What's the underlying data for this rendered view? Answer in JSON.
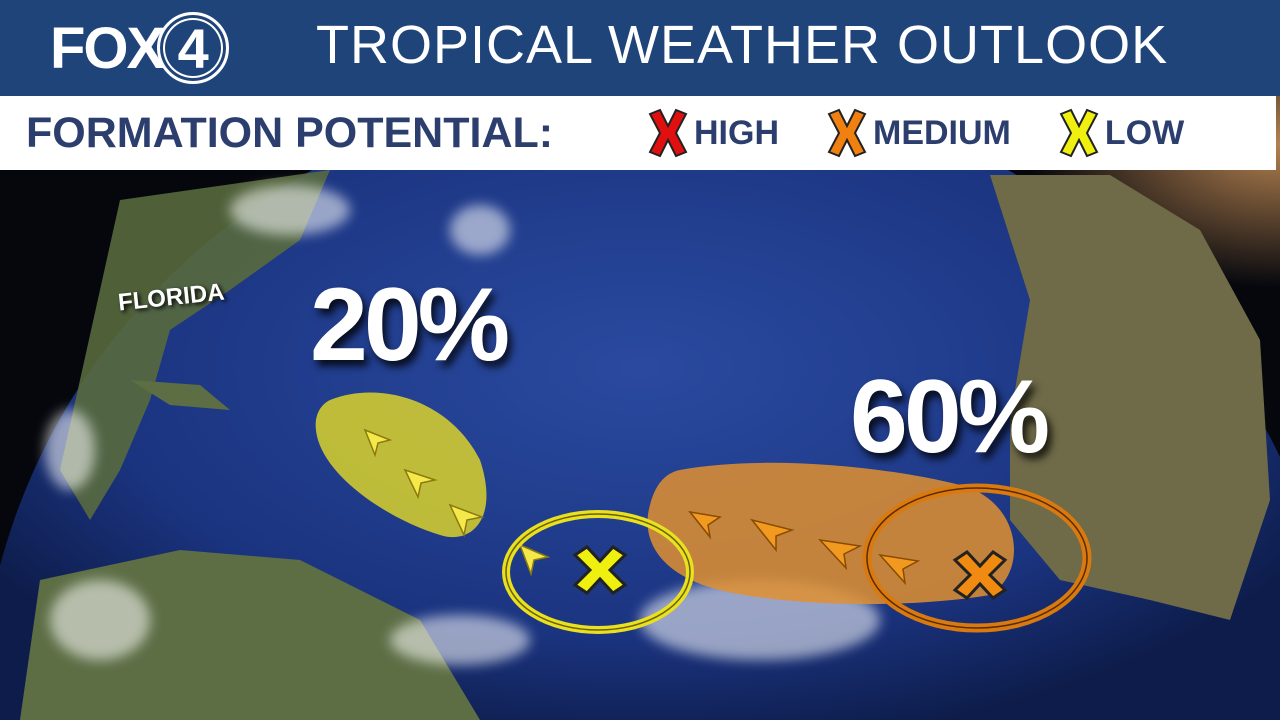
{
  "header": {
    "logo": "FOX4",
    "logo_text": "FOX",
    "logo_number": "4",
    "title": "TROPICAL WEATHER OUTLOOK"
  },
  "legend": {
    "title": "FORMATION POTENTIAL:",
    "items": [
      {
        "label": "HIGH",
        "color": "#e01010"
      },
      {
        "label": "MEDIUM",
        "color": "#f08010"
      },
      {
        "label": "LOW",
        "color": "#f0f010"
      }
    ]
  },
  "map": {
    "place_labels": [
      "FLORIDA"
    ],
    "systems": [
      {
        "potential": "LOW",
        "percent": "20%",
        "color": "#e8e020",
        "area_color": "#d9d22a"
      },
      {
        "potential": "MEDIUM",
        "percent": "60%",
        "color": "#f08a10",
        "area_color": "#e09030"
      }
    ],
    "colors": {
      "ocean": "#1e3a86",
      "land": "#5d6e45",
      "header": "#1f4479"
    }
  }
}
